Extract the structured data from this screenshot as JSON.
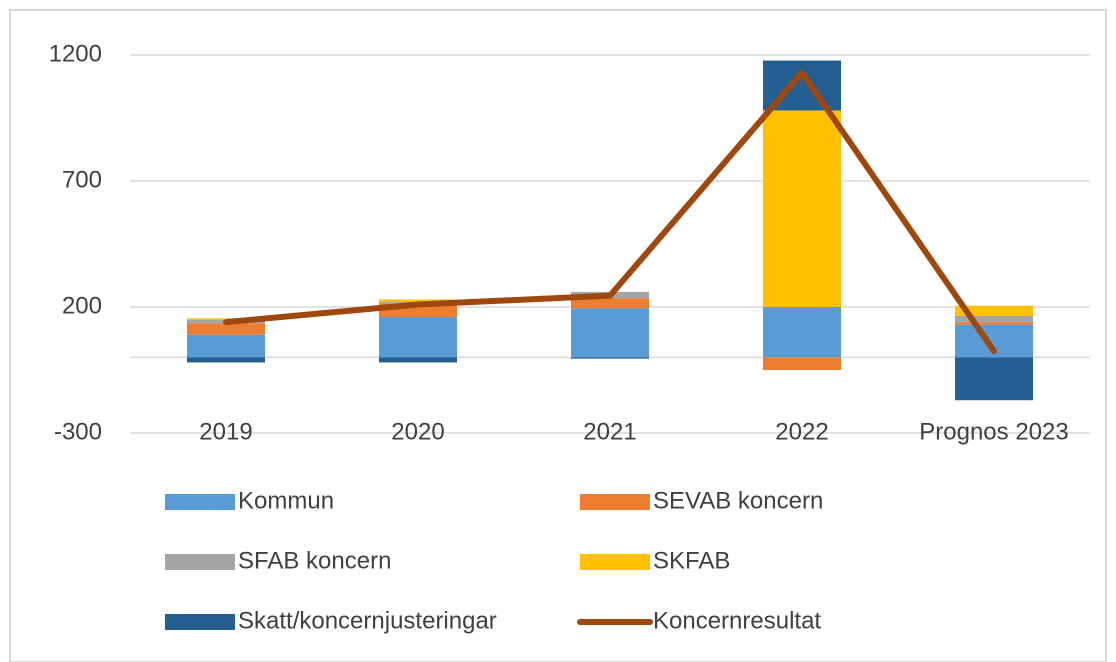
{
  "chart_data": {
    "type": "bar",
    "categories": [
      "2019",
      "2020",
      "2021",
      "2022",
      "Prognos 2023"
    ],
    "series": [
      {
        "name": "Kommun",
        "color": "#5b9bd5",
        "values": [
          90,
          160,
          195,
          200,
          130
        ]
      },
      {
        "name": "SEVAB koncern",
        "color": "#ed7d31",
        "values": [
          45,
          55,
          40,
          -50,
          10
        ]
      },
      {
        "name": "SFAB koncern",
        "color": "#a5a5a5",
        "values": [
          15,
          5,
          25,
          0,
          25
        ]
      },
      {
        "name": "SKFAB",
        "color": "#ffc000",
        "values": [
          5,
          10,
          0,
          780,
          40
        ]
      },
      {
        "name": "Skatt/koncernjusteringar",
        "color": "#255e91",
        "values": [
          -20,
          -20,
          -5,
          198,
          -170
        ]
      },
      {
        "name": "Koncernresultat",
        "color": "#9e480e",
        "type": "line",
        "values": [
          140,
          210,
          245,
          1130,
          25
        ]
      }
    ],
    "ylim": [
      -300,
      1200
    ],
    "yticks": [
      -300,
      200,
      700,
      1200
    ],
    "grid": true,
    "legend": "bottom"
  }
}
